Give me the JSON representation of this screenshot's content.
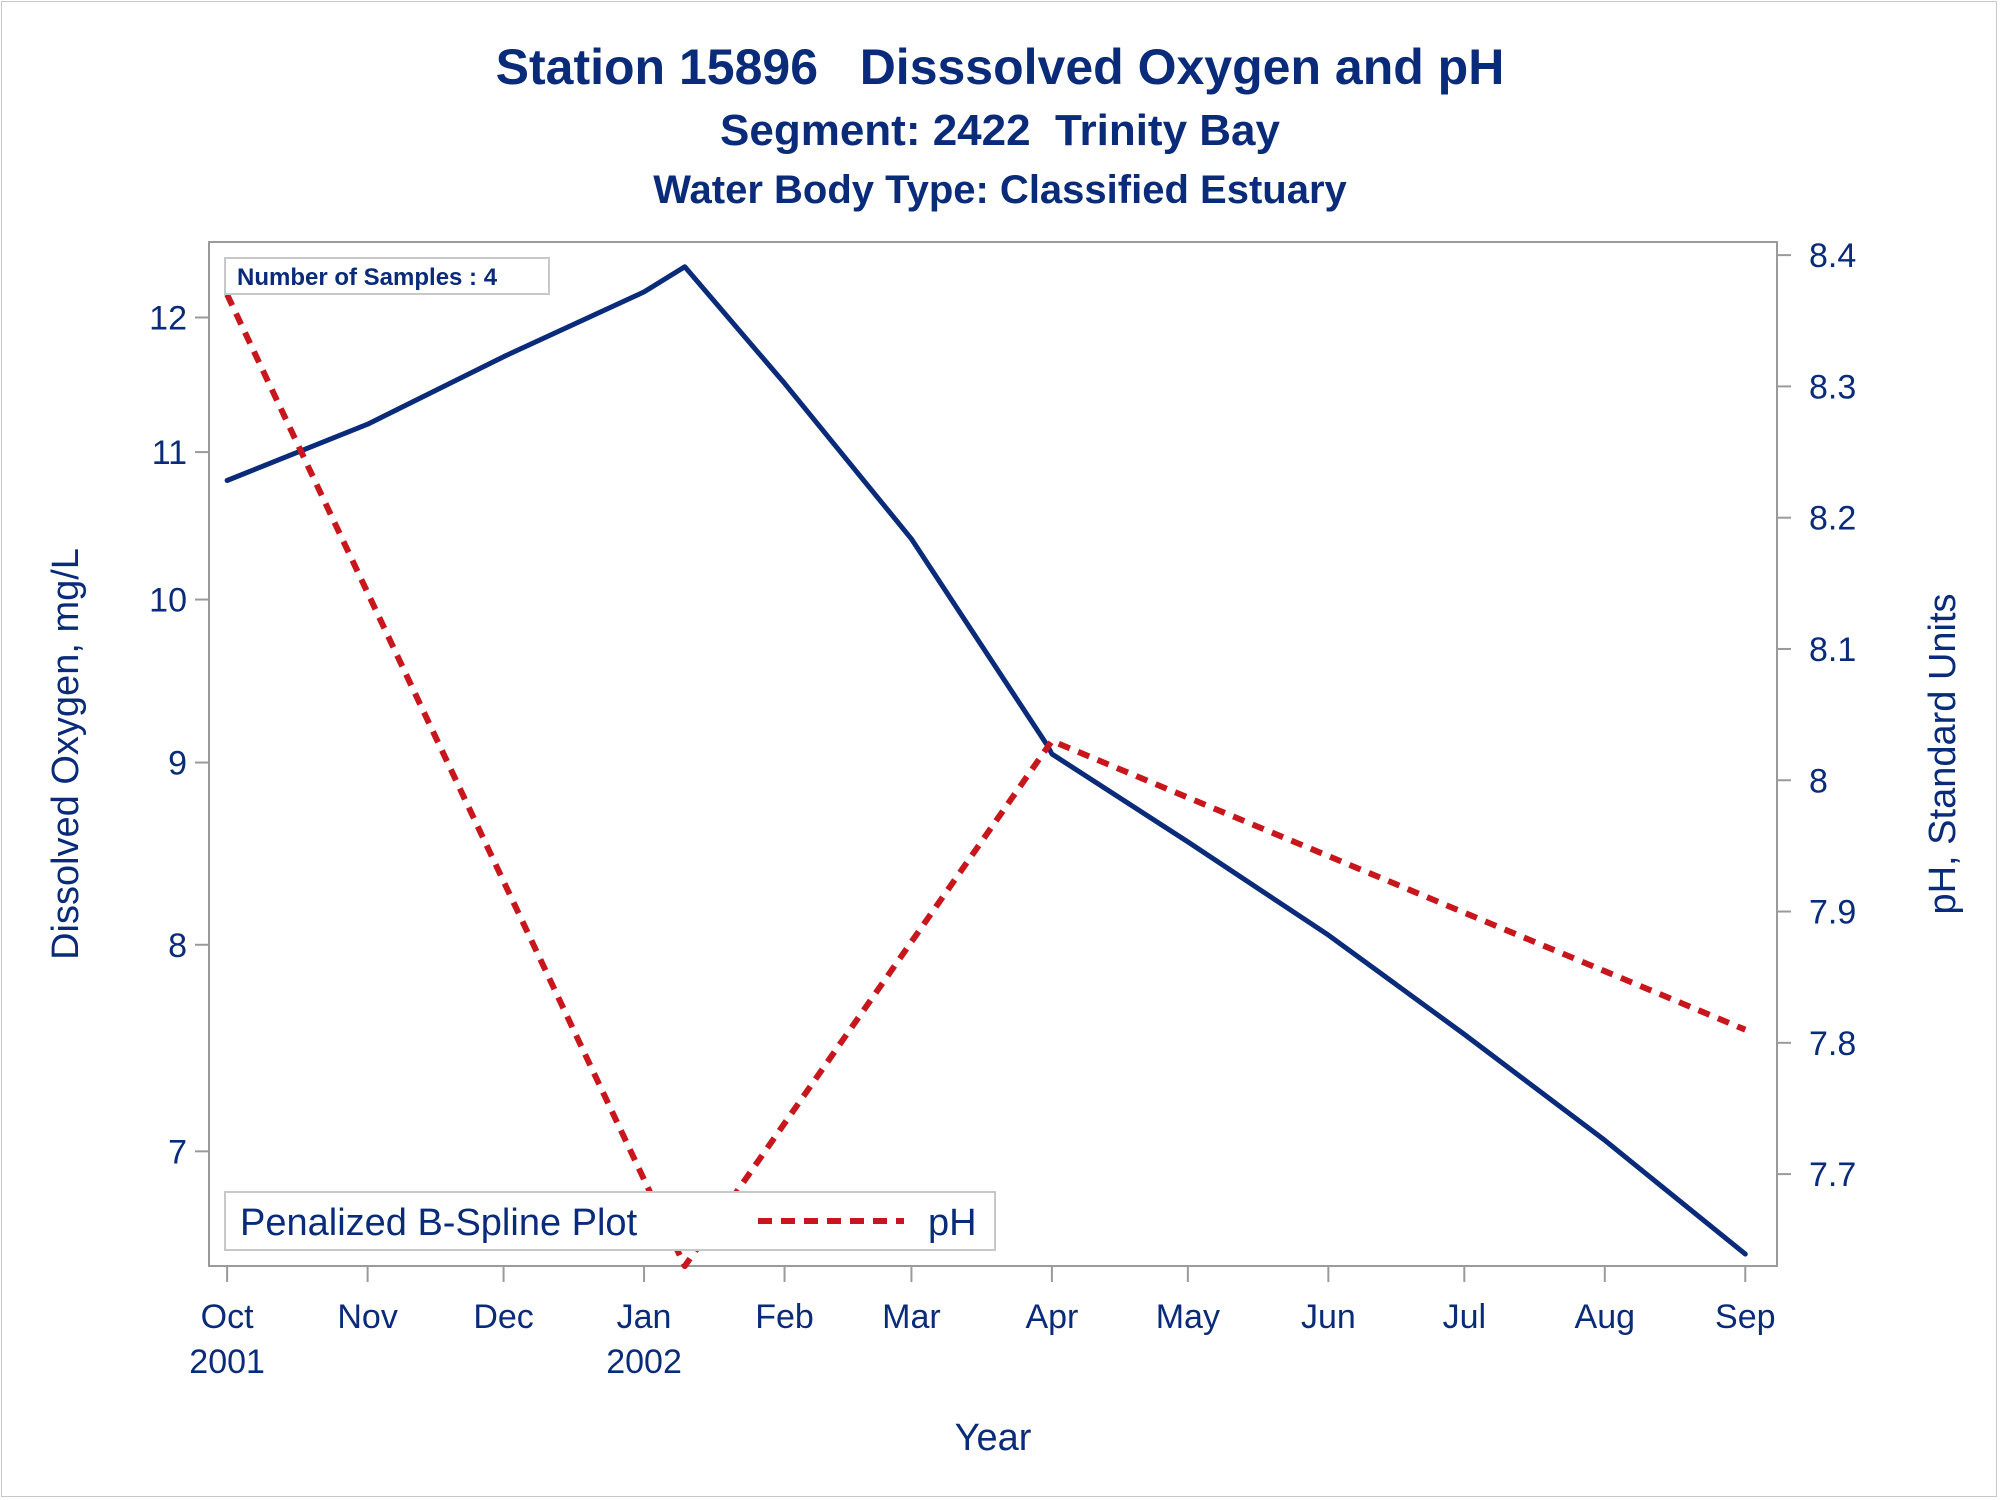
{
  "chart_data": {
    "type": "line",
    "title": "Station 15896   Disssolved Oxygen and pH",
    "subtitle": "Segment: 2422  Trinity Bay",
    "subtitle2": "Water Body Type: Classified Estuary",
    "xlabel": "Year",
    "ylabel": "Dissolved Oxygen, mg/L",
    "y2label": "pH, Standard Units",
    "note": "Number of Samples : 4",
    "legend_title": "Penalized B-Spline Plot",
    "legend_position": "bottom-left",
    "x_ticks": [
      {
        "date": "2001-10-01",
        "label": "Oct",
        "label2": "2001"
      },
      {
        "date": "2001-11-01",
        "label": "Nov",
        "label2": ""
      },
      {
        "date": "2001-12-01",
        "label": "Dec",
        "label2": ""
      },
      {
        "date": "2002-01-01",
        "label": "Jan",
        "label2": "2002"
      },
      {
        "date": "2002-02-01",
        "label": "Feb",
        "label2": ""
      },
      {
        "date": "2002-03-01",
        "label": "Mar",
        "label2": ""
      },
      {
        "date": "2002-04-01",
        "label": "Apr",
        "label2": ""
      },
      {
        "date": "2002-05-01",
        "label": "May",
        "label2": ""
      },
      {
        "date": "2002-06-01",
        "label": "Jun",
        "label2": ""
      },
      {
        "date": "2002-07-01",
        "label": "Jul",
        "label2": ""
      },
      {
        "date": "2002-08-01",
        "label": "Aug",
        "label2": ""
      },
      {
        "date": "2002-09-01",
        "label": "Sep",
        "label2": ""
      }
    ],
    "xlim": [
      "2001-09-27",
      "2002-09-08"
    ],
    "y_scale": "log",
    "y_ticks": [
      7,
      8,
      9,
      10,
      11,
      12
    ],
    "ylim": [
      6.5,
      12.6
    ],
    "y2_ticks": [
      7.7,
      7.8,
      7.9,
      8.0,
      8.1,
      8.2,
      8.3,
      8.4
    ],
    "y2_tick_labels": [
      "7.7",
      "7.8",
      "7.9",
      "8",
      "8.1",
      "8.2",
      "8.3",
      "8.4"
    ],
    "y2lim": [
      7.63,
      8.41
    ],
    "grid": false,
    "series": [
      {
        "name": "",
        "axis": "left",
        "color": "#0a2b7a",
        "style": "solid",
        "points": [
          {
            "x": "2001-10-01",
            "y": 10.8
          },
          {
            "x": "2001-11-01",
            "y": 11.2
          },
          {
            "x": "2001-12-01",
            "y": 11.7
          },
          {
            "x": "2002-01-01",
            "y": 12.2
          },
          {
            "x": "2002-01-10",
            "y": 12.4
          },
          {
            "x": "2002-02-01",
            "y": 11.5
          },
          {
            "x": "2002-03-01",
            "y": 10.4
          },
          {
            "x": "2002-03-31",
            "y": 9.1
          },
          {
            "x": "2002-04-01",
            "y": 9.05
          },
          {
            "x": "2002-05-01",
            "y": 8.55
          },
          {
            "x": "2002-06-01",
            "y": 8.05
          },
          {
            "x": "2002-07-01",
            "y": 7.55
          },
          {
            "x": "2002-08-01",
            "y": 7.05
          },
          {
            "x": "2002-09-01",
            "y": 6.55
          }
        ]
      },
      {
        "name": "pH",
        "axis": "right",
        "color": "#c8161d",
        "style": "dashed",
        "points": [
          {
            "x": "2001-10-01",
            "y": 8.37
          },
          {
            "x": "2002-01-10",
            "y": 7.63
          },
          {
            "x": "2002-04-01",
            "y": 8.03
          },
          {
            "x": "2002-09-01",
            "y": 7.81
          }
        ]
      }
    ]
  }
}
